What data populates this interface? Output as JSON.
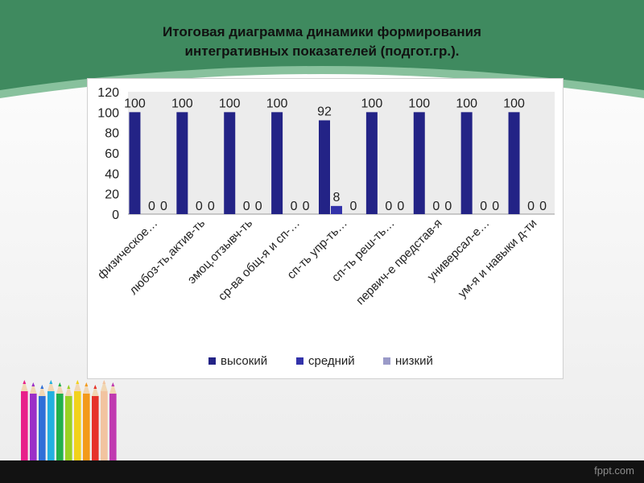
{
  "slide": {
    "title_line1": "Итоговая диаграмма динамики формирования",
    "title_line2": "интегративных  показателей (подгот.гр.).",
    "footer": "fppt.com"
  },
  "colors": {
    "band_green": "#3f8a5f",
    "band_light": "#88c19d",
    "series": [
      "#232386",
      "#3333aa",
      "#9a9ac8"
    ]
  },
  "chart_data": {
    "type": "bar",
    "title": "",
    "xlabel": "",
    "ylabel": "",
    "ylim": [
      0,
      120
    ],
    "yticks": [
      "0",
      "20",
      "40",
      "60",
      "80",
      "100",
      "120"
    ],
    "grid": false,
    "legend_position": "bottom",
    "categories": [
      "физическое…",
      "любоз-ть,актив-ть",
      "эмоц.отзывч-ть",
      "ср-ва общ-я и сп-…",
      "сп-ть упр-ть…",
      "сп-ть реш-ть…",
      "первич-е представ-я",
      "универсал-е…",
      "ум-я и навыки д-ти"
    ],
    "series": [
      {
        "name": "высокий",
        "values": [
          100,
          100,
          100,
          100,
          92,
          100,
          100,
          100,
          100
        ]
      },
      {
        "name": "средний",
        "values": [
          0,
          0,
          0,
          0,
          8,
          0,
          0,
          0,
          0
        ]
      },
      {
        "name": "низкий",
        "values": [
          0,
          0,
          0,
          0,
          0,
          0,
          0,
          0,
          0
        ]
      }
    ]
  }
}
